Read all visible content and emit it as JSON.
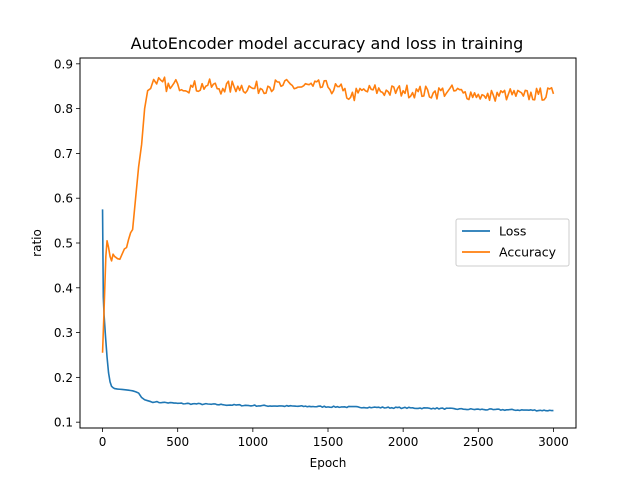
{
  "chart_data": {
    "type": "line",
    "title": "AutoEncoder model accuracy and loss in training",
    "xlabel": "Epoch",
    "ylabel": "ratio",
    "xlim": [
      -150,
      3150
    ],
    "ylim": [
      0.087,
      0.913
    ],
    "xticks": [
      0,
      500,
      1000,
      1500,
      2000,
      2500,
      3000
    ],
    "yticks": [
      0.1,
      0.2,
      0.3,
      0.4,
      0.5,
      0.6,
      0.7,
      0.8,
      0.9
    ],
    "grid": false,
    "legend_position": "center-right",
    "series": [
      {
        "name": "Loss",
        "color": "#1f77b4",
        "x": [
          0,
          5,
          10,
          20,
          30,
          40,
          50,
          60,
          70,
          80,
          100,
          130,
          160,
          200,
          220,
          240,
          250,
          260,
          280,
          300,
          320,
          350,
          400,
          500,
          600,
          800,
          1000,
          1200,
          1400,
          1600,
          1800,
          2000,
          2200,
          2400,
          2600,
          2800,
          3000
        ],
        "y": [
          0.575,
          0.38,
          0.34,
          0.29,
          0.245,
          0.21,
          0.19,
          0.18,
          0.177,
          0.175,
          0.174,
          0.173,
          0.172,
          0.17,
          0.168,
          0.165,
          0.16,
          0.155,
          0.15,
          0.148,
          0.146,
          0.145,
          0.144,
          0.142,
          0.141,
          0.139,
          0.137,
          0.136,
          0.135,
          0.134,
          0.133,
          0.132,
          0.131,
          0.129,
          0.128,
          0.127,
          0.126
        ]
      },
      {
        "name": "Accuracy",
        "color": "#ff7f0e",
        "x": [
          0,
          8,
          15,
          22,
          30,
          40,
          50,
          60,
          70,
          80,
          100,
          130,
          160,
          200,
          220,
          240,
          260,
          280,
          300,
          320,
          340,
          360,
          400,
          450,
          500,
          600,
          700,
          800,
          900,
          1000,
          1100,
          1200,
          1300,
          1400,
          1500,
          1600,
          1650,
          1700,
          1800,
          1900,
          2000,
          2100,
          2200,
          2300,
          2400,
          2500,
          2550,
          2600,
          2700,
          2800,
          2900,
          3000
        ],
        "y": [
          0.255,
          0.33,
          0.4,
          0.47,
          0.505,
          0.49,
          0.47,
          0.46,
          0.475,
          0.47,
          0.465,
          0.475,
          0.49,
          0.53,
          0.6,
          0.67,
          0.72,
          0.8,
          0.84,
          0.845,
          0.865,
          0.855,
          0.86,
          0.845,
          0.855,
          0.848,
          0.852,
          0.845,
          0.85,
          0.845,
          0.85,
          0.852,
          0.848,
          0.85,
          0.848,
          0.84,
          0.825,
          0.835,
          0.842,
          0.838,
          0.84,
          0.838,
          0.835,
          0.84,
          0.835,
          0.832,
          0.823,
          0.83,
          0.832,
          0.828,
          0.832,
          0.833
        ]
      }
    ]
  }
}
